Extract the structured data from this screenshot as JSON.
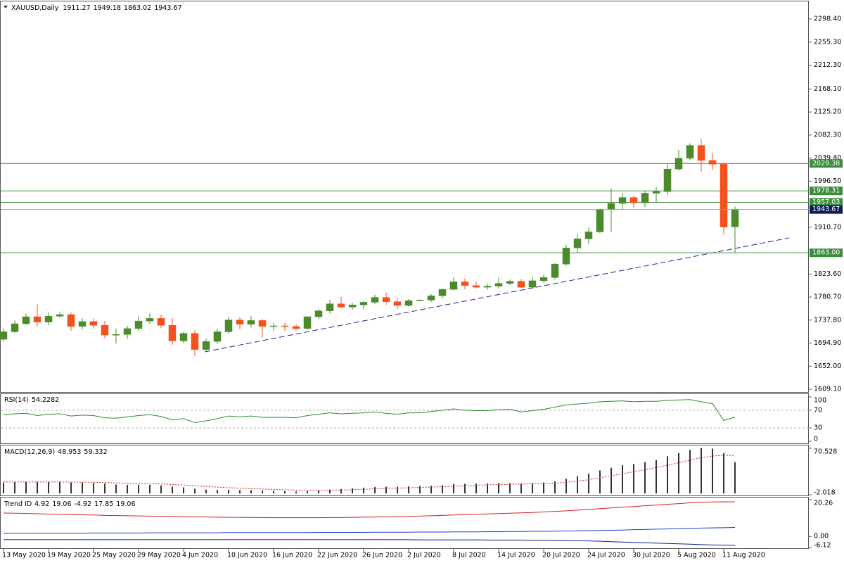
{
  "chart_data": [
    {
      "type": "candlestick",
      "title": "XAUUSD,Daily",
      "categories": [
        "13 May 2020",
        null,
        null,
        null,
        "19 May 2020",
        null,
        null,
        null,
        "25 May 2020",
        null,
        null,
        null,
        "29 May 2020",
        null,
        null,
        null,
        "4 Jun 2020",
        null,
        null,
        null,
        "10 Jun 2020",
        null,
        null,
        null,
        "16 Jun 2020",
        null,
        null,
        null,
        "22 Jun 2020",
        null,
        null,
        null,
        "26 Jun 2020",
        null,
        null,
        null,
        "2 Jul 2020",
        null,
        null,
        null,
        "8 Jul 2020",
        null,
        null,
        null,
        "14 Jul 2020",
        null,
        null,
        null,
        "20 Jul 2020",
        null,
        null,
        null,
        "24 Jul 2020",
        null,
        null,
        null,
        "30 Jul 2020",
        null,
        null,
        null,
        "5 Aug 2020",
        null,
        null,
        null,
        "11 Aug 2020",
        null
      ],
      "open": [
        1702,
        1716,
        1731,
        1744,
        1734,
        1745,
        1748,
        1726,
        1735,
        1728,
        1710,
        1711,
        1722,
        1736,
        1741,
        1728,
        1699,
        1713,
        1683,
        1698,
        1716,
        1738,
        1730,
        1737,
        1726,
        1727,
        1726,
        1722,
        1744,
        1755,
        1768,
        1762,
        1766,
        1771,
        1780,
        1772,
        1765,
        1774,
        1775,
        1783,
        1795,
        1809,
        1802,
        1799,
        1801,
        1806,
        1810,
        1799,
        1811,
        1817,
        1842,
        1872,
        1889,
        1902,
        1944,
        1955,
        1966,
        1956,
        1974,
        1977,
        2019,
        2039,
        2063,
        2035,
        2028,
        1911.27
      ],
      "high": [
        1722,
        1737,
        1750,
        1767,
        1752,
        1752,
        1752,
        1741,
        1741,
        1736,
        1722,
        1727,
        1746,
        1751,
        1748,
        1742,
        1716,
        1719,
        1703,
        1722,
        1744,
        1744,
        1745,
        1740,
        1733,
        1733,
        1730,
        1745,
        1758,
        1775,
        1781,
        1770,
        1773,
        1785,
        1789,
        1779,
        1777,
        1776,
        1786,
        1797,
        1818,
        1815,
        1809,
        1806,
        1817,
        1813,
        1814,
        1818,
        1822,
        1844,
        1878,
        1898,
        1910,
        1945,
        1983,
        1975,
        1970,
        1978,
        1985,
        2030,
        2055,
        2067,
        2075,
        2049,
        2031,
        1949.18
      ],
      "low": [
        1698,
        1714,
        1729,
        1726,
        1728,
        1742,
        1718,
        1720,
        1722,
        1703,
        1694,
        1703,
        1718,
        1731,
        1723,
        1692,
        1695,
        1671,
        1680,
        1694,
        1712,
        1721,
        1724,
        1705,
        1718,
        1718,
        1718,
        1720,
        1740,
        1750,
        1760,
        1757,
        1758,
        1768,
        1766,
        1758,
        1763,
        1773,
        1771,
        1778,
        1793,
        1795,
        1797,
        1794,
        1797,
        1803,
        1798,
        1796,
        1808,
        1813,
        1839,
        1862,
        1880,
        1900,
        1902,
        1943,
        1947,
        1948,
        1956,
        1971,
        2016,
        2035,
        2014,
        2018,
        1897,
        1863.02
      ],
      "close": [
        1716,
        1731,
        1744,
        1734,
        1745,
        1748,
        1726,
        1735,
        1728,
        1710,
        1711,
        1722,
        1736,
        1741,
        1728,
        1699,
        1713,
        1683,
        1698,
        1716,
        1738,
        1730,
        1737,
        1726,
        1727,
        1726,
        1722,
        1744,
        1755,
        1768,
        1762,
        1766,
        1771,
        1780,
        1772,
        1765,
        1774,
        1775,
        1783,
        1795,
        1809,
        1802,
        1799,
        1801,
        1806,
        1810,
        1799,
        1811,
        1817,
        1842,
        1872,
        1889,
        1902,
        1944,
        1955,
        1966,
        1956,
        1974,
        1977,
        2019,
        2039,
        2063,
        2035,
        2028,
        1911,
        1943.67
      ],
      "up_color": "#4b8b2b",
      "down_color": "#f4511e",
      "last_price_color": "#0b1e5b",
      "ylim": [
        1605.2,
        2331.1
      ],
      "yticks": [
        {
          "value": 2298.4,
          "label": "2298.40"
        },
        {
          "value": 2255.3,
          "label": "2255.30"
        },
        {
          "value": 2212.3,
          "label": "2212.30"
        },
        {
          "value": 2168.1,
          "label": "2168.10"
        },
        {
          "value": 2125.2,
          "label": "2125.20"
        },
        {
          "value": 2082.3,
          "label": "2082.30"
        },
        {
          "value": 2039.4,
          "label": "2039.40"
        },
        {
          "value": 1996.5,
          "label": "1996.50"
        },
        {
          "value": 1910.7,
          "label": "1910.70"
        },
        {
          "value": 1823.6,
          "label": "1823.60"
        },
        {
          "value": 1780.7,
          "label": "1780.70"
        },
        {
          "value": 1737.8,
          "label": "1737.80"
        },
        {
          "value": 1694.9,
          "label": "1694.90"
        },
        {
          "value": 1652,
          "label": "1652.00"
        },
        {
          "value": 1609.1,
          "label": "1609.10"
        }
      ],
      "levels": [
        2029.38,
        1978.31,
        1957.03,
        {
          "value": 1863,
          "label": "1863.00"
        }
      ],
      "level_color": "#3d8b3d",
      "level_labels": true
    },
    {
      "type": "line",
      "title": "RSI(14)",
      "values": [
        60,
        62,
        63,
        58,
        61,
        62,
        57,
        59,
        58,
        53,
        52,
        55,
        58,
        60,
        56,
        48,
        51,
        42,
        46,
        51,
        57,
        55,
        57,
        54,
        54,
        54,
        53,
        58,
        61,
        64,
        62,
        63,
        64,
        66,
        63,
        61,
        64,
        64,
        67,
        70,
        73,
        70,
        69,
        69,
        71,
        72,
        66,
        69,
        72,
        77,
        82,
        84,
        86,
        89,
        90,
        91,
        89,
        90,
        90,
        92,
        93,
        94,
        89,
        85,
        47,
        54.2282
      ],
      "color": "#2e8b2e",
      "ylim": [
        0,
        100
      ],
      "yticks": [
        100,
        70,
        30,
        0
      ],
      "levels": [
        70,
        30
      ],
      "level_color": "#aaaaaa",
      "level_dash": true
    },
    {
      "type": "macd",
      "title": "MACD(12,26,9)",
      "histogram": [
        17,
        17.5,
        18,
        18,
        18,
        18,
        17,
        17,
        16.5,
        15.5,
        14,
        13.5,
        13.5,
        13.5,
        12.5,
        10.5,
        9.5,
        7.5,
        6,
        5.5,
        5.5,
        5,
        5,
        4.5,
        4,
        3.5,
        3,
        3.5,
        4.5,
        6,
        7,
        8,
        9,
        10,
        10.5,
        10.5,
        11,
        11.5,
        12,
        13,
        14.5,
        15,
        15.5,
        15.5,
        16,
        16,
        15.5,
        16,
        17,
        19,
        23,
        27,
        31,
        36,
        40,
        44,
        46,
        49,
        52,
        58,
        63,
        68,
        71,
        70,
        63,
        48.953
      ],
      "signal": [
        18,
        17.9,
        17.9,
        17.9,
        17.9,
        17.9,
        17.8,
        17.6,
        17.4,
        17,
        16.5,
        16,
        15.6,
        15.2,
        14.7,
        14,
        13.2,
        12.1,
        10.9,
        9.9,
        9,
        8.2,
        7.5,
        6.9,
        6.3,
        5.7,
        5.2,
        4.9,
        4.8,
        5,
        5.4,
        5.9,
        6.5,
        7.2,
        7.8,
        8.3,
        8.9,
        9.4,
        9.9,
        10.5,
        11.3,
        12,
        12.7,
        13.3,
        13.8,
        14.3,
        14.6,
        14.9,
        15.3,
        16,
        17.3,
        19.1,
        21.5,
        24.4,
        27.5,
        30.8,
        34,
        37,
        40.5,
        44,
        48,
        52,
        56,
        58.5,
        59.5,
        59.332
      ],
      "histogram_color": "#333333",
      "signal_color": "#d62020",
      "ylim": [
        -2.018,
        70.528
      ],
      "yticks": [
        70.528,
        -2.018
      ]
    },
    {
      "type": "line",
      "title": "Trend ID",
      "series": [
        {
          "color": "#d62020",
          "values": [
            12.9,
            12.8,
            12.7,
            12.5,
            12.3,
            12.2,
            12.0,
            11.9,
            11.8,
            11.6,
            11.5,
            11.4,
            11.3,
            11.2,
            11.1,
            11.0,
            10.9,
            10.8,
            10.7,
            10.6,
            10.5,
            10.5,
            10.4,
            10.4,
            10.3,
            10.3,
            10.3,
            10.3,
            10.3,
            10.4,
            10.4,
            10.5,
            10.6,
            10.7,
            10.8,
            10.9,
            11.0,
            11.2,
            11.4,
            11.6,
            11.8,
            12.0,
            12.2,
            12.4,
            12.6,
            12.8,
            13.0,
            13.2,
            13.5,
            13.8,
            14.1,
            14.5,
            14.9,
            15.3,
            15.7,
            16.1,
            16.5,
            16.9,
            17.3,
            17.7,
            18.1,
            18.5,
            18.8,
            19.0,
            19.1,
            19.06
          ]
        },
        {
          "color": "#1f3fd0",
          "values": [
            1.7,
            1.7,
            1.7,
            1.8,
            1.8,
            1.8,
            1.8,
            1.8,
            1.9,
            1.9,
            1.9,
            1.9,
            1.9,
            2.0,
            2.0,
            2.0,
            2.0,
            2.0,
            2.0,
            2.0,
            2.1,
            2.1,
            2.1,
            2.1,
            2.1,
            2.1,
            2.1,
            2.1,
            2.2,
            2.2,
            2.2,
            2.2,
            2.2,
            2.3,
            2.3,
            2.3,
            2.3,
            2.4,
            2.4,
            2.4,
            2.5,
            2.5,
            2.5,
            2.6,
            2.6,
            2.7,
            2.7,
            2.8,
            2.8,
            2.9,
            3.0,
            3.1,
            3.2,
            3.3,
            3.4,
            3.5,
            3.7,
            3.8,
            4.0,
            4.1,
            4.3,
            4.4,
            4.6,
            4.7,
            4.8,
            4.92
          ]
        },
        {
          "color": "#0a1f8f",
          "values": [
            -1.8,
            -1.8,
            -1.8,
            -1.8,
            -1.8,
            -1.8,
            -1.8,
            -1.8,
            -1.8,
            -1.8,
            -1.8,
            -1.8,
            -1.8,
            -1.8,
            -1.8,
            -1.8,
            -1.8,
            -1.8,
            -1.8,
            -1.8,
            -1.8,
            -1.8,
            -1.8,
            -1.8,
            -1.8,
            -1.8,
            -1.8,
            -1.8,
            -1.8,
            -1.8,
            -1.8,
            -1.8,
            -1.8,
            -1.8,
            -1.8,
            -1.8,
            -1.8,
            -1.9,
            -1.9,
            -1.9,
            -1.9,
            -1.9,
            -1.9,
            -2.0,
            -2.0,
            -2.0,
            -2.0,
            -2.1,
            -2.1,
            -2.2,
            -2.3,
            -2.4,
            -2.5,
            -2.7,
            -2.9,
            -3.1,
            -3.3,
            -3.5,
            -3.7,
            -3.9,
            -4.1,
            -4.3,
            -4.5,
            -4.7,
            -4.8,
            -4.92
          ]
        }
      ],
      "extra_values": [
        17.85,
        19.06
      ],
      "ylim": [
        -6.12,
        20.26
      ],
      "yticks": [
        20.26,
        {
          "value": 0,
          "label": "0.00"
        },
        -6.12
      ]
    }
  ]
}
